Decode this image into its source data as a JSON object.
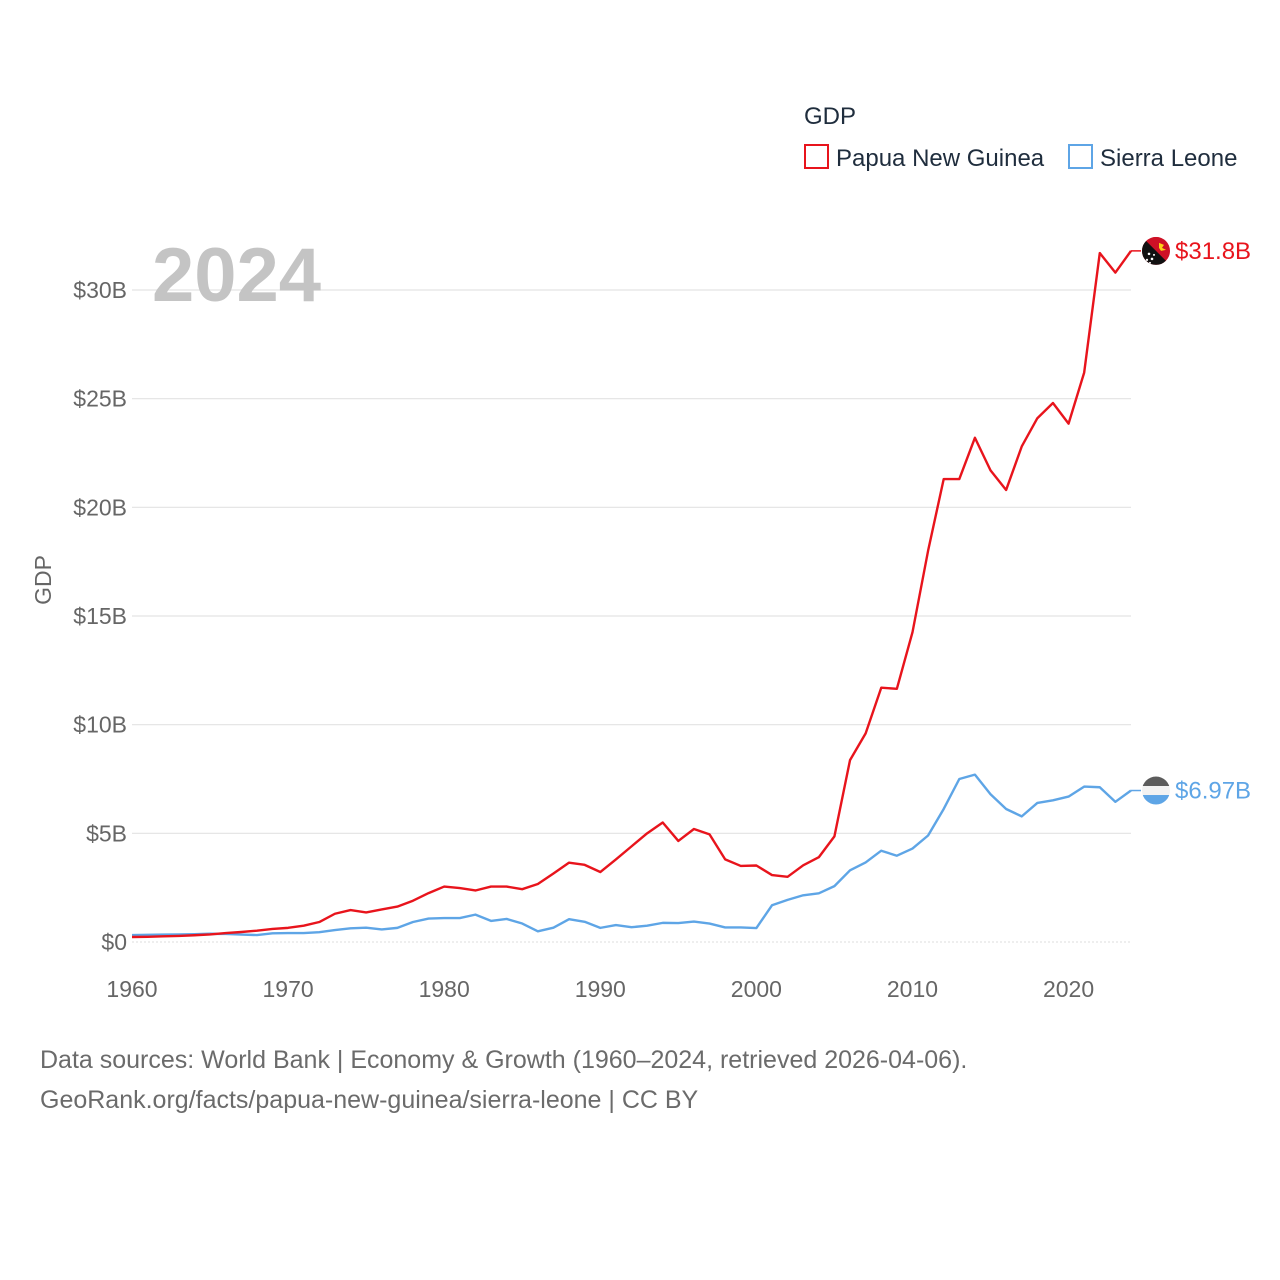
{
  "chart_data": {
    "type": "line",
    "legend_title": "GDP",
    "year_label": "2024",
    "ylabel": "GDP",
    "x_ticks": [
      1960,
      1970,
      1980,
      1990,
      2000,
      2010,
      2020
    ],
    "y_ticks": [
      {
        "value": 0,
        "label": "$0"
      },
      {
        "value": 5,
        "label": "$5B"
      },
      {
        "value": 10,
        "label": "$10B"
      },
      {
        "value": 15,
        "label": "$15B"
      },
      {
        "value": 20,
        "label": "$20B"
      },
      {
        "value": 25,
        "label": "$25B"
      },
      {
        "value": 30,
        "label": "$30B"
      }
    ],
    "xlim": [
      1960,
      2024
    ],
    "ylim": [
      0,
      30
    ],
    "unit": "billion USD",
    "series": [
      {
        "name": "Papua New Guinea",
        "color": "#e8141c",
        "end_label": "$31.8B",
        "flag_icon": "papua-new-guinea-flag-icon",
        "start_year": 1960,
        "values": [
          0.23,
          0.24,
          0.26,
          0.28,
          0.31,
          0.35,
          0.41,
          0.46,
          0.52,
          0.6,
          0.65,
          0.75,
          0.92,
          1.3,
          1.47,
          1.36,
          1.5,
          1.63,
          1.9,
          2.25,
          2.55,
          2.48,
          2.37,
          2.55,
          2.55,
          2.43,
          2.67,
          3.15,
          3.65,
          3.55,
          3.22,
          3.8,
          4.4,
          5.0,
          5.5,
          4.65,
          5.2,
          4.95,
          3.8,
          3.5,
          3.52,
          3.08,
          3.0,
          3.53,
          3.9,
          4.86,
          8.37,
          9.6,
          11.7,
          11.65,
          14.25,
          18.0,
          21.3,
          21.3,
          23.2,
          21.7,
          20.8,
          22.8,
          24.1,
          24.8,
          23.85,
          26.2,
          31.7,
          30.8,
          31.8
        ]
      },
      {
        "name": "Sierra Leone",
        "color": "#5ea5e6",
        "end_label": "$6.97B",
        "flag_icon": "sierra-leone-flag-icon",
        "start_year": 1960,
        "values": [
          0.32,
          0.33,
          0.34,
          0.35,
          0.36,
          0.38,
          0.37,
          0.34,
          0.32,
          0.4,
          0.41,
          0.41,
          0.45,
          0.55,
          0.63,
          0.66,
          0.58,
          0.65,
          0.92,
          1.08,
          1.1,
          1.1,
          1.26,
          0.97,
          1.06,
          0.85,
          0.49,
          0.66,
          1.05,
          0.93,
          0.65,
          0.78,
          0.68,
          0.75,
          0.88,
          0.87,
          0.94,
          0.85,
          0.67,
          0.67,
          0.64,
          1.69,
          1.94,
          2.15,
          2.24,
          2.57,
          3.3,
          3.66,
          4.2,
          3.97,
          4.3,
          4.9,
          6.12,
          7.5,
          7.7,
          6.8,
          6.12,
          5.78,
          6.4,
          6.52,
          6.69,
          7.15,
          7.12,
          6.45,
          6.97
        ]
      }
    ]
  },
  "footer": {
    "line1": "Data sources: World Bank | Economy & Growth (1960–2024, retrieved 2026-04-06).",
    "line2": "GeoRank.org/facts/papua-new-guinea/sierra-leone | CC BY"
  }
}
